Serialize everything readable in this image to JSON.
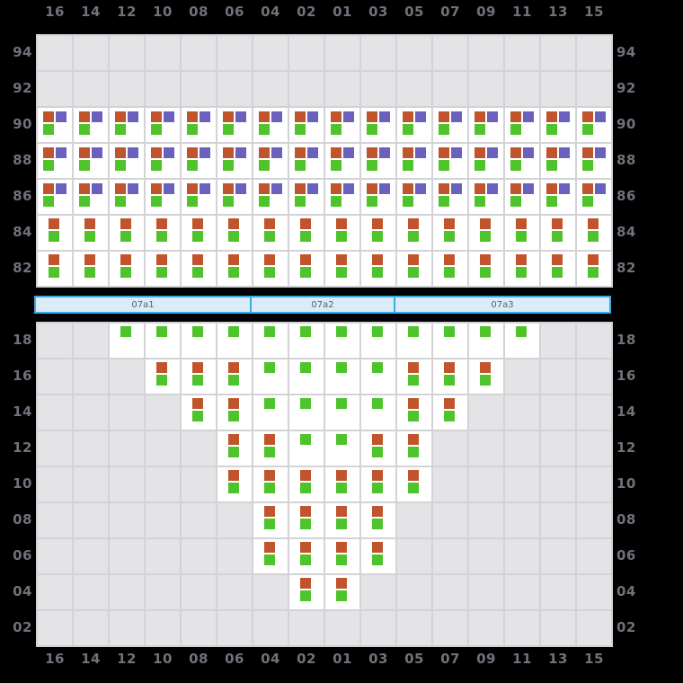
{
  "colors": {
    "background": "#000000",
    "grid_line": "#d3d3d7",
    "empty_cell": "#e4e4e7",
    "occupied_cell": "#ffffff",
    "axis_label": "#71717c",
    "orange": "#c0542c",
    "green": "#4ec32b",
    "purple": "#6961bd",
    "hatch_fill": "#d9ecf8",
    "hatch_border": "#3aabe2",
    "hatch_label": "#5a646e"
  },
  "axis": {
    "columns": [
      "16",
      "14",
      "12",
      "10",
      "08",
      "06",
      "04",
      "02",
      "01",
      "03",
      "05",
      "07",
      "09",
      "11",
      "13",
      "15"
    ]
  },
  "cell_types": {
    "E": {
      "markers": []
    },
    "G": {
      "markers": [
        "green"
      ]
    },
    "OG": {
      "markers": [
        "orange",
        "green"
      ]
    },
    "OPG": {
      "markers": [
        "orange",
        "purple",
        "green"
      ]
    }
  },
  "top_grid": {
    "tiers": [
      {
        "tier": "94",
        "cells": [
          "E",
          "E",
          "E",
          "E",
          "E",
          "E",
          "E",
          "E",
          "E",
          "E",
          "E",
          "E",
          "E",
          "E",
          "E",
          "E"
        ]
      },
      {
        "tier": "92",
        "cells": [
          "E",
          "E",
          "E",
          "E",
          "E",
          "E",
          "E",
          "E",
          "E",
          "E",
          "E",
          "E",
          "E",
          "E",
          "E",
          "E"
        ]
      },
      {
        "tier": "90",
        "cells": [
          "OPG",
          "OPG",
          "OPG",
          "OPG",
          "OPG",
          "OPG",
          "OPG",
          "OPG",
          "OPG",
          "OPG",
          "OPG",
          "OPG",
          "OPG",
          "OPG",
          "OPG",
          "OPG"
        ]
      },
      {
        "tier": "88",
        "cells": [
          "OPG",
          "OPG",
          "OPG",
          "OPG",
          "OPG",
          "OPG",
          "OPG",
          "OPG",
          "OPG",
          "OPG",
          "OPG",
          "OPG",
          "OPG",
          "OPG",
          "OPG",
          "OPG"
        ]
      },
      {
        "tier": "86",
        "cells": [
          "OPG",
          "OPG",
          "OPG",
          "OPG",
          "OPG",
          "OPG",
          "OPG",
          "OPG",
          "OPG",
          "OPG",
          "OPG",
          "OPG",
          "OPG",
          "OPG",
          "OPG",
          "OPG"
        ]
      },
      {
        "tier": "84",
        "cells": [
          "OG",
          "OG",
          "OG",
          "OG",
          "OG",
          "OG",
          "OG",
          "OG",
          "OG",
          "OG",
          "OG",
          "OG",
          "OG",
          "OG",
          "OG",
          "OG"
        ]
      },
      {
        "tier": "82",
        "cells": [
          "OG",
          "OG",
          "OG",
          "OG",
          "OG",
          "OG",
          "OG",
          "OG",
          "OG",
          "OG",
          "OG",
          "OG",
          "OG",
          "OG",
          "OG",
          "OG"
        ]
      }
    ]
  },
  "hatch_bar": {
    "sections": [
      {
        "label": "07a1",
        "columns": 6
      },
      {
        "label": "07a2",
        "columns": 4
      },
      {
        "label": "07a3",
        "columns": 6
      }
    ]
  },
  "bottom_grid": {
    "tiers": [
      {
        "tier": "18",
        "cells": [
          "E",
          "E",
          "G",
          "G",
          "G",
          "G",
          "G",
          "G",
          "G",
          "G",
          "G",
          "G",
          "G",
          "G",
          "E",
          "E"
        ]
      },
      {
        "tier": "16",
        "cells": [
          "E",
          "E",
          "E",
          "OG",
          "OG",
          "OG",
          "G",
          "G",
          "G",
          "G",
          "OG",
          "OG",
          "OG",
          "E",
          "E",
          "E"
        ]
      },
      {
        "tier": "14",
        "cells": [
          "E",
          "E",
          "E",
          "E",
          "OG",
          "OG",
          "G",
          "G",
          "G",
          "G",
          "OG",
          "OG",
          "E",
          "E",
          "E",
          "E"
        ]
      },
      {
        "tier": "12",
        "cells": [
          "E",
          "E",
          "E",
          "E",
          "E",
          "OG",
          "OG",
          "G",
          "G",
          "OG",
          "OG",
          "E",
          "E",
          "E",
          "E",
          "E"
        ]
      },
      {
        "tier": "10",
        "cells": [
          "E",
          "E",
          "E",
          "E",
          "E",
          "OG",
          "OG",
          "OG",
          "OG",
          "OG",
          "OG",
          "E",
          "E",
          "E",
          "E",
          "E"
        ]
      },
      {
        "tier": "08",
        "cells": [
          "E",
          "E",
          "E",
          "E",
          "E",
          "E",
          "OG",
          "OG",
          "OG",
          "OG",
          "E",
          "E",
          "E",
          "E",
          "E",
          "E"
        ]
      },
      {
        "tier": "06",
        "cells": [
          "E",
          "E",
          "E",
          "E",
          "E",
          "E",
          "OG",
          "OG",
          "OG",
          "OG",
          "E",
          "E",
          "E",
          "E",
          "E",
          "E"
        ]
      },
      {
        "tier": "04",
        "cells": [
          "E",
          "E",
          "E",
          "E",
          "E",
          "E",
          "E",
          "OG",
          "OG",
          "E",
          "E",
          "E",
          "E",
          "E",
          "E",
          "E"
        ]
      },
      {
        "tier": "02",
        "cells": [
          "E",
          "E",
          "E",
          "E",
          "E",
          "E",
          "E",
          "E",
          "E",
          "E",
          "E",
          "E",
          "E",
          "E",
          "E",
          "E"
        ]
      }
    ]
  }
}
